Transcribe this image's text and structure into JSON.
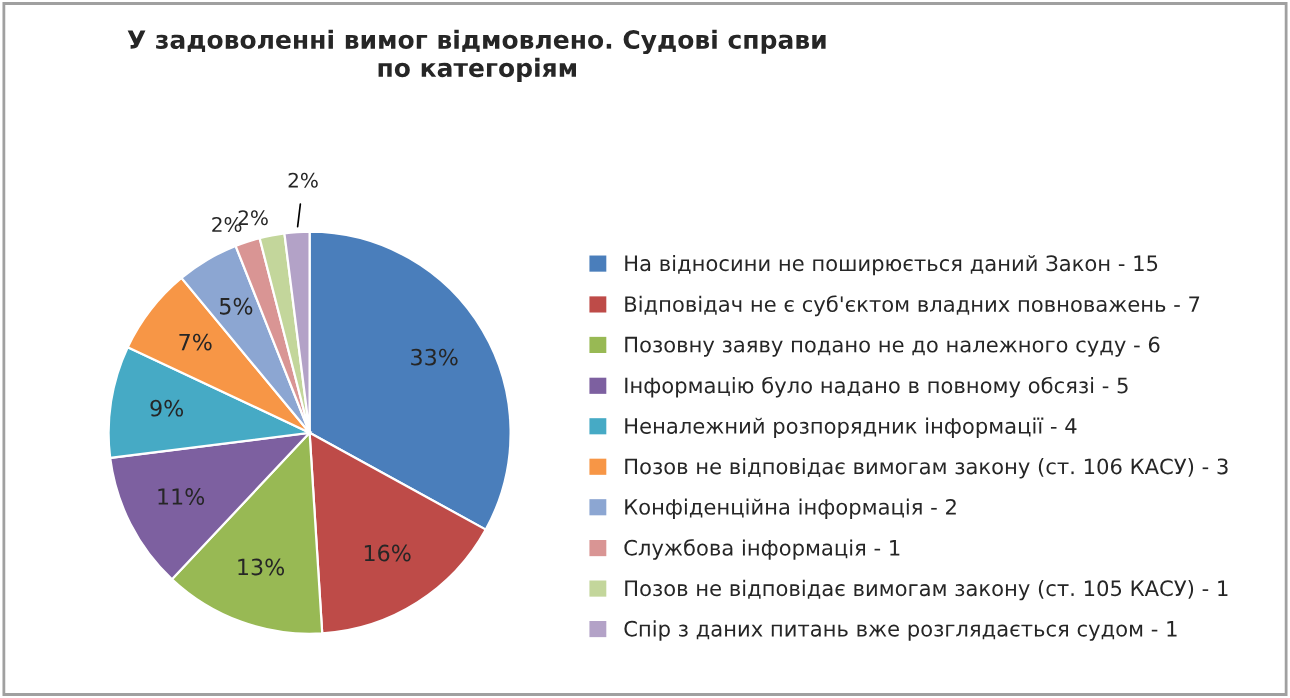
{
  "chart_data": {
    "type": "pie",
    "title": "У задоволенні вимог відмовлено. Судові справи\nпо категоріям",
    "categories": [
      "На відносини не поширюється даний Закон - 15",
      "Відповідач не є суб'єктом владних повноважень - 7",
      "Позовну заяву подано не до належного суду - 6",
      "Інформацію було надано в повному обсязі - 5",
      "Неналежний розпорядник інформації - 4",
      "Позов не відповідає вимогам закону (ст. 106 КАСУ) - 3",
      "Конфіденційна інформація - 2",
      "Службова інформація - 1",
      "Позов не відповідає вимогам закону (ст. 105 КАСУ) - 1",
      "Спір з даних питань вже розглядається судом - 1"
    ],
    "values": [
      33,
      16,
      13,
      11,
      9,
      7,
      5,
      2,
      2,
      2
    ],
    "value_labels": [
      "33%",
      "16%",
      "13%",
      "11%",
      "9%",
      "7%",
      "5%",
      "2%",
      "2%",
      "2%"
    ],
    "colors": [
      "#4a7ebb",
      "#be4b48",
      "#98b954",
      "#7d60a0",
      "#46aac5",
      "#f79646",
      "#8ca6d2",
      "#d99594",
      "#c3d69b",
      "#b3a2c7"
    ],
    "legend": "right"
  }
}
